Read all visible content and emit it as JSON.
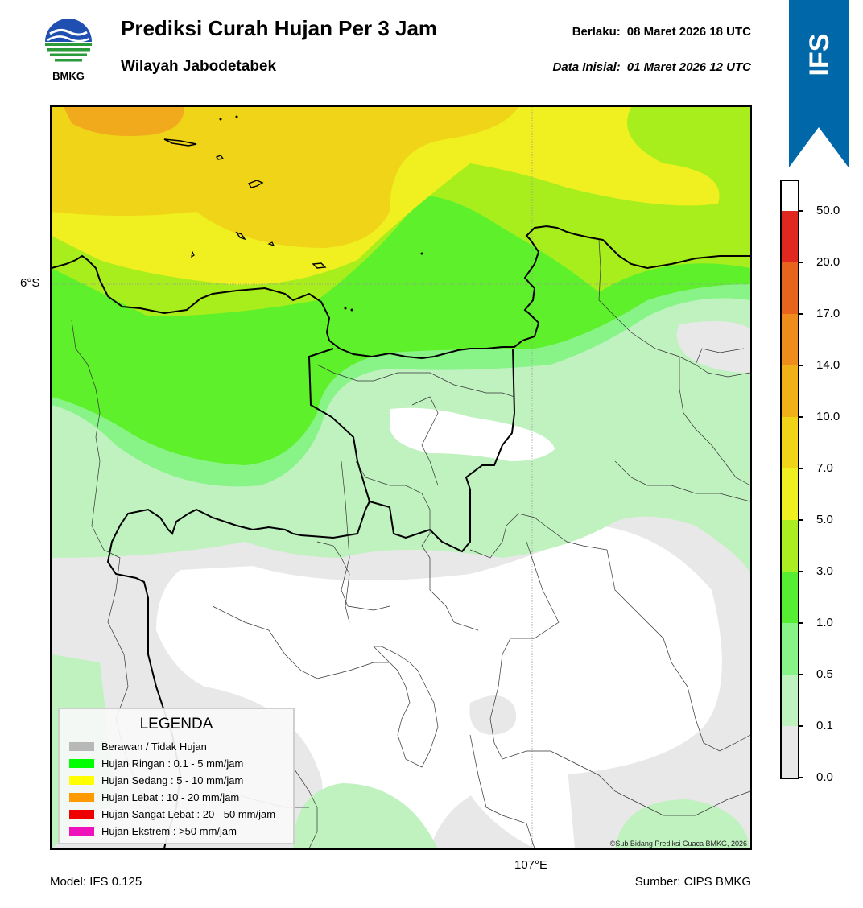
{
  "header": {
    "title": "Prediksi Curah Hujan Per 3 Jam",
    "subtitle": "Wilayah Jabodetabek",
    "valid_label": "Berlaku:",
    "valid_value": "08 Maret 2026 18 UTC",
    "init_label": "Data Inisial:",
    "init_value": "01 Maret 2026 12 UTC"
  },
  "logo": {
    "icon": "bmkg-logo-icon",
    "text": "BMKG"
  },
  "badge": {
    "text": "IFS",
    "color": "#0068a8"
  },
  "map": {
    "lat_label": "6°S",
    "lon_label": "107°E",
    "copyright": "©Sub Bidang Prediksi Cuaca BMKG, 2026"
  },
  "legend": {
    "title": "LEGENDA",
    "items": [
      {
        "label": "Berawan / Tidak Hujan",
        "color": "#b8b8b8"
      },
      {
        "label": "Hujan Ringan : 0.1 - 5 mm/jam",
        "color": "#00ff00"
      },
      {
        "label": "Hujan Sedang : 5 - 10 mm/jam",
        "color": "#ffff00"
      },
      {
        "label": "Hujan Lebat : 10 - 20 mm/jam",
        "color": "#ff9900"
      },
      {
        "label": "Hujan Sangat Lebat : 20 - 50 mm/jam",
        "color": "#ee0000"
      },
      {
        "label": "Hujan Ekstrem : >50 mm/jam",
        "color": "#ee11bb"
      }
    ]
  },
  "colorbar": {
    "levels": [
      {
        "label": "0.0",
        "color": "#e8e8e8"
      },
      {
        "label": "0.1",
        "color": "#c0f2c0"
      },
      {
        "label": "0.5",
        "color": "#88f488"
      },
      {
        "label": "1.0",
        "color": "#55ee33"
      },
      {
        "label": "3.0",
        "color": "#aaee22"
      },
      {
        "label": "5.0",
        "color": "#f0f020"
      },
      {
        "label": "7.0",
        "color": "#f0d418"
      },
      {
        "label": "10.0",
        "color": "#f0b018"
      },
      {
        "label": "14.0",
        "color": "#ee8c1c"
      },
      {
        "label": "17.0",
        "color": "#e8641c"
      },
      {
        "label": "20.0",
        "color": "#e02820"
      },
      {
        "label": "50.0",
        "color": "#e81ac0"
      }
    ],
    "top_color": "#e81ac0"
  },
  "footer": {
    "model": "Model: IFS 0.125",
    "source": "Sumber: CIPS BMKG"
  }
}
